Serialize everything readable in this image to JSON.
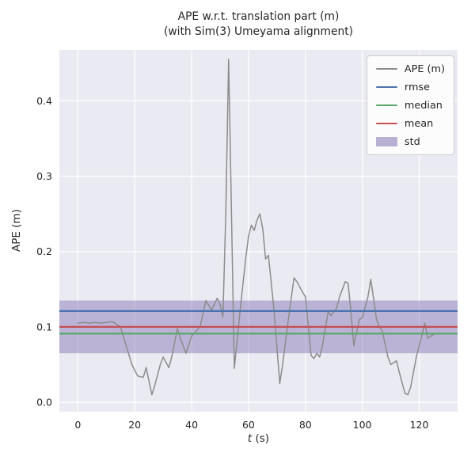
{
  "figure": {
    "title_line1": "APE w.r.t. translation part (m)",
    "title_line2": "(with Sim(3) Umeyama alignment)",
    "ylabel": "APE (m)",
    "xlabel_var": "t",
    "xlabel_unit": "(s)"
  },
  "legend": {
    "position": "upper right",
    "items": [
      {
        "label": "APE (m)",
        "color": "#8c8c8c",
        "type": "line"
      },
      {
        "label": "rmse",
        "color": "#4c72b0",
        "type": "line"
      },
      {
        "label": "median",
        "color": "#55a868",
        "type": "line"
      },
      {
        "label": "mean",
        "color": "#c44e52",
        "type": "line"
      },
      {
        "label": "std",
        "color": "#8172b2",
        "type": "patch"
      }
    ]
  },
  "chart_data": {
    "type": "line",
    "title": "APE w.r.t. translation part (m)",
    "subtitle": "(with Sim(3) Umeyama alignment)",
    "xlabel": "t (s)",
    "ylabel": "APE (m)",
    "grid": true,
    "plot_bg": "#eaeaf2",
    "grid_color": "#ffffff",
    "xlim": [
      -6.5,
      133.5
    ],
    "ylim": [
      -0.0125,
      0.4675
    ],
    "xticks": [
      0,
      20,
      40,
      60,
      80,
      100,
      120
    ],
    "yticks": [
      0.0,
      0.1,
      0.2,
      0.3,
      0.4
    ],
    "legend_position": "upper right",
    "stats": {
      "rmse": 0.121,
      "mean": 0.1,
      "median": 0.091,
      "std": 0.035
    },
    "series": [
      {
        "name": "APE (m)",
        "color": "#8c8c8c",
        "x": [
          0,
          2,
          4,
          6,
          8,
          10,
          12,
          13,
          15,
          17,
          19,
          21,
          23,
          24,
          26,
          27,
          29,
          30,
          32,
          33,
          35,
          36,
          38,
          40,
          41,
          43,
          45,
          47,
          49,
          50,
          51,
          52,
          53,
          54,
          55,
          57,
          59,
          60,
          61,
          62,
          63,
          64,
          65,
          66,
          67,
          69,
          71,
          72,
          74,
          76,
          77,
          79,
          80,
          82,
          83,
          84,
          85,
          86,
          88,
          89,
          91,
          92,
          94,
          95,
          96,
          97,
          99,
          100,
          102,
          103,
          105,
          106,
          107,
          109,
          110,
          112,
          113,
          115,
          116,
          117,
          119,
          120,
          121,
          122,
          123,
          125
        ],
        "y": [
          0.105,
          0.106,
          0.105,
          0.106,
          0.105,
          0.106,
          0.107,
          0.105,
          0.1,
          0.075,
          0.05,
          0.035,
          0.033,
          0.046,
          0.01,
          0.022,
          0.05,
          0.06,
          0.046,
          0.06,
          0.098,
          0.085,
          0.065,
          0.088,
          0.092,
          0.1,
          0.135,
          0.122,
          0.138,
          0.13,
          0.113,
          0.25,
          0.455,
          0.25,
          0.045,
          0.12,
          0.19,
          0.22,
          0.235,
          0.228,
          0.242,
          0.25,
          0.23,
          0.19,
          0.195,
          0.12,
          0.025,
          0.05,
          0.11,
          0.165,
          0.16,
          0.146,
          0.14,
          0.062,
          0.058,
          0.065,
          0.06,
          0.075,
          0.12,
          0.115,
          0.125,
          0.14,
          0.16,
          0.158,
          0.12,
          0.075,
          0.11,
          0.112,
          0.14,
          0.163,
          0.11,
          0.1,
          0.095,
          0.06,
          0.05,
          0.055,
          0.04,
          0.012,
          0.01,
          0.02,
          0.06,
          0.075,
          0.09,
          0.105,
          0.085,
          0.09
        ]
      }
    ],
    "hlines": [
      {
        "name": "rmse",
        "color": "#4c72b0",
        "y": 0.121
      },
      {
        "name": "median",
        "color": "#55a868",
        "y": 0.091
      },
      {
        "name": "mean",
        "color": "#c44e52",
        "y": 0.1
      }
    ],
    "band": {
      "name": "std",
      "color": "#8172b2",
      "alpha": 0.45,
      "y_low": 0.065,
      "y_high": 0.135
    }
  }
}
